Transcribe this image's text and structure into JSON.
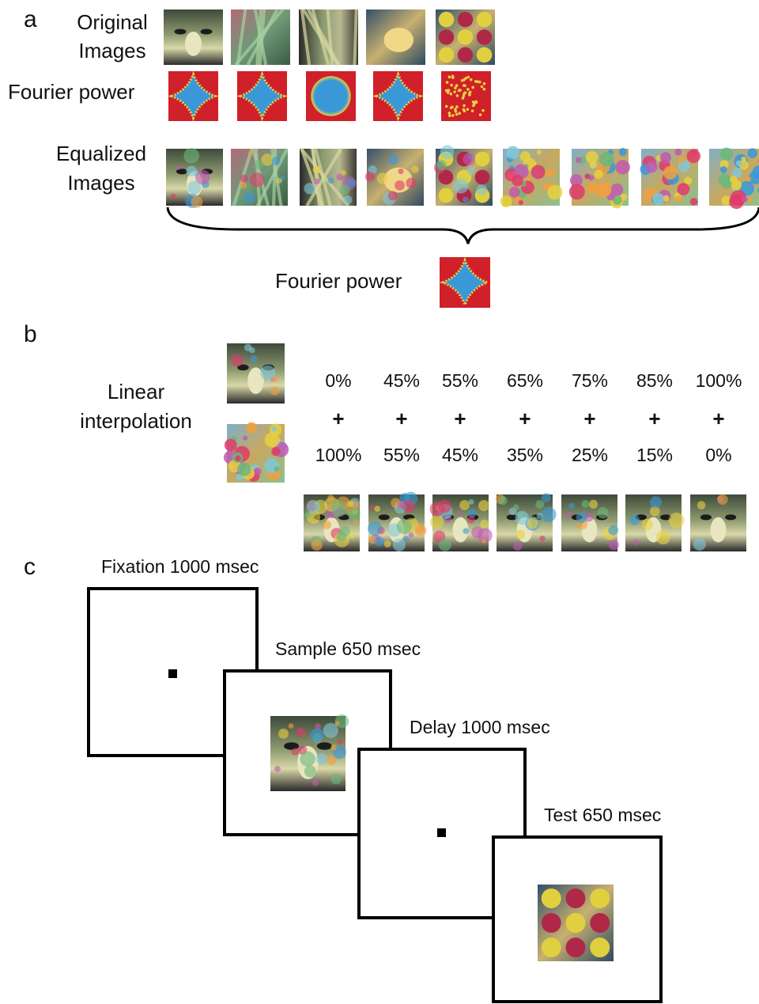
{
  "panel_a": {
    "label": "a",
    "original_label": [
      "Original",
      "Images"
    ],
    "fourier_label": "Fourier power",
    "equalized_label": [
      "Equalized",
      "Images"
    ],
    "pooled_fourier_label": "Fourier power"
  },
  "panel_b": {
    "label": "b",
    "method_label": [
      "Linear",
      "interpolation"
    ],
    "columns": [
      {
        "top": "0%",
        "op": "+",
        "bottom": "100%"
      },
      {
        "top": "45%",
        "op": "+",
        "bottom": "55%"
      },
      {
        "top": "55%",
        "op": "+",
        "bottom": "45%"
      },
      {
        "top": "65%",
        "op": "+",
        "bottom": "35%"
      },
      {
        "top": "75%",
        "op": "+",
        "bottom": "25%"
      },
      {
        "top": "85%",
        "op": "+",
        "bottom": "15%"
      },
      {
        "top": "100%",
        "op": "+",
        "bottom": "0%"
      }
    ]
  },
  "panel_c": {
    "label": "c",
    "steps": [
      "Fixation 1000 msec",
      "Sample 650 msec",
      "Delay 1000 msec",
      "Test 650 msec"
    ]
  }
}
